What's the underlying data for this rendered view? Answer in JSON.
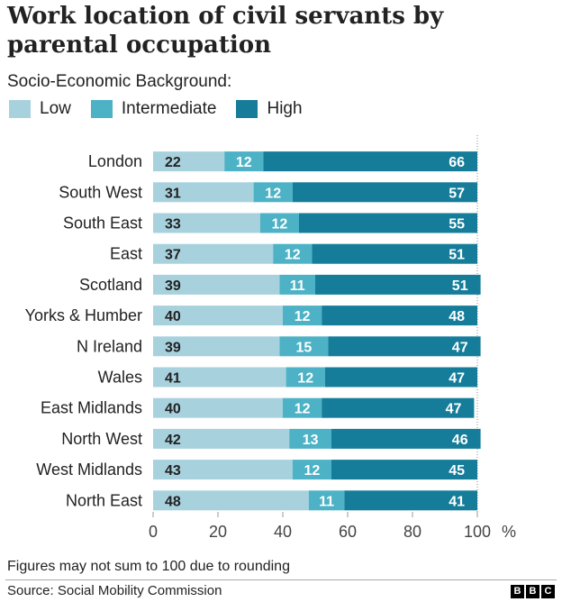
{
  "colors": {
    "low": "#a8d1de",
    "intermediate": "#4db2c5",
    "high": "#157d9a",
    "text_dark": "#222222",
    "text_light": "#ffffff"
  },
  "legend": {
    "heading": "Socio-Economic Background:",
    "items": [
      {
        "key": "low",
        "label": "Low"
      },
      {
        "key": "intermediate",
        "label": "Intermediate"
      },
      {
        "key": "high",
        "label": "High"
      }
    ]
  },
  "footnote": "Figures may not sum to 100 due to rounding",
  "source": "Source: Social Mobility Commission",
  "brand": {
    "letters": [
      "B",
      "B",
      "C"
    ]
  },
  "chart_data": {
    "type": "bar",
    "orientation": "horizontal",
    "stacked": true,
    "title": "Work location of civil servants by parental occupation",
    "categories": [
      "London",
      "South West",
      "South East",
      "East",
      "Scotland",
      "Yorks & Humber",
      "N Ireland",
      "Wales",
      "East Midlands",
      "North West",
      "West Midlands",
      "North East"
    ],
    "series": [
      {
        "name": "Low",
        "key": "low",
        "values": [
          22,
          31,
          33,
          37,
          39,
          40,
          39,
          41,
          40,
          42,
          43,
          48
        ]
      },
      {
        "name": "Intermediate",
        "key": "intermediate",
        "values": [
          12,
          12,
          12,
          12,
          11,
          12,
          15,
          12,
          12,
          13,
          12,
          11
        ]
      },
      {
        "name": "High",
        "key": "high",
        "values": [
          66,
          57,
          55,
          51,
          51,
          48,
          47,
          47,
          47,
          46,
          45,
          41
        ]
      }
    ],
    "xlim": [
      0,
      100
    ],
    "xticks": [
      0,
      20,
      40,
      60,
      80,
      100
    ],
    "xlabel": "%",
    "reference_line": 100
  }
}
